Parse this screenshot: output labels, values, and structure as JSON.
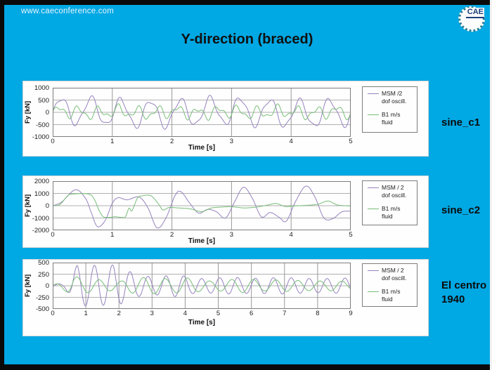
{
  "header": {
    "url": "www.caeconference.com",
    "title": "Y-direction (braced)",
    "logo_text": "CAE"
  },
  "row_labels": [
    "sine_c1",
    "sine_c2",
    "El centro\n1940"
  ],
  "colors": {
    "background": "#00A8E4",
    "panel": "#FEFEFE",
    "frame": "#7d7d7d",
    "grid_h": "#b0b0b0",
    "grid_v": "#999999",
    "series_msm": "#9782BE",
    "series_b1": "#78BE78",
    "title_text": "#101010",
    "url_text": "#EAF6FC"
  },
  "chart_data": [
    {
      "type": "line",
      "xlabel": "Time  [s]",
      "ylabel": "Fy [kN]",
      "xlim": [
        0,
        5
      ],
      "ylim": [
        -1000,
        1000
      ],
      "xticks": [
        0,
        1,
        2,
        3,
        4,
        5
      ],
      "yticks": [
        1000,
        500,
        0,
        -500,
        -1000
      ],
      "xgrid": [
        1,
        2,
        3,
        4
      ],
      "ygrid": [
        500,
        0,
        -500
      ],
      "legend_position": "right",
      "row_label": "sine_c1",
      "series": [
        {
          "name": "MSM /2 dof oscill.",
          "label_lines": [
            "MSM /2",
            "dof oscill."
          ],
          "color": "#9782BE",
          "gen": {
            "kind": "sines",
            "components": [
              [
                540,
                2.0,
                -0.22
              ],
              [
                110,
                4.6,
                0.9
              ],
              [
                60,
                0.4,
                0.55
              ]
            ]
          }
        },
        {
          "name": "B1 m/s fluid",
          "label_lines": [
            "B1 m/s",
            "fluid"
          ],
          "color": "#78BE78",
          "gen": {
            "kind": "sines",
            "components": [
              [
                200,
                3.0,
                -0.35
              ],
              [
                110,
                5.6,
                0.6
              ],
              [
                40,
                1.1,
                0.2
              ]
            ]
          }
        }
      ]
    },
    {
      "type": "line",
      "xlabel": "Time  [s]",
      "ylabel": "Fy [kN]",
      "xlim": [
        0,
        5
      ],
      "ylim": [
        -2000,
        2000
      ],
      "xticks": [
        0,
        1,
        2,
        3,
        4,
        5
      ],
      "yticks": [
        2000,
        1000,
        0,
        -1000,
        -2000
      ],
      "xgrid": [
        1,
        2,
        3,
        4
      ],
      "ygrid": [
        1000,
        0,
        -1000
      ],
      "legend_position": "right",
      "row_label": "sine_c2",
      "series": [
        {
          "name": "MSM / 2 dof oscill.",
          "label_lines": [
            "MSM / 2",
            "dof oscill."
          ],
          "color": "#9782BE",
          "gen": {
            "kind": "keypoints",
            "points": [
              [
                0,
                0
              ],
              [
                0.15,
                300
              ],
              [
                0.38,
                1300
              ],
              [
                0.55,
                600
              ],
              [
                0.65,
                -600
              ],
              [
                0.75,
                -1700
              ],
              [
                0.88,
                -1200
              ],
              [
                1.0,
                200
              ],
              [
                1.1,
                650
              ],
              [
                1.25,
                480
              ],
              [
                1.45,
                700
              ],
              [
                1.6,
                -200
              ],
              [
                1.75,
                -1800
              ],
              [
                1.9,
                -1000
              ],
              [
                2.05,
                800
              ],
              [
                2.15,
                1150
              ],
              [
                2.3,
                200
              ],
              [
                2.45,
                -600
              ],
              [
                2.6,
                -300
              ],
              [
                2.75,
                -500
              ],
              [
                2.9,
                -1000
              ],
              [
                3.05,
                300
              ],
              [
                3.2,
                1500
              ],
              [
                3.35,
                600
              ],
              [
                3.5,
                -900
              ],
              [
                3.65,
                -550
              ],
              [
                3.8,
                -950
              ],
              [
                3.92,
                -1250
              ],
              [
                4.08,
                400
              ],
              [
                4.25,
                1600
              ],
              [
                4.4,
                700
              ],
              [
                4.55,
                -1000
              ],
              [
                4.7,
                -1050
              ],
              [
                4.85,
                -500
              ],
              [
                5.0,
                -450
              ]
            ]
          }
        },
        {
          "name": "B1 m/s fluid",
          "label_lines": [
            "B1 m/s",
            "fluid"
          ],
          "color": "#78BE78",
          "gen": {
            "kind": "keypoints",
            "points": [
              [
                0,
                0
              ],
              [
                0.12,
                100
              ],
              [
                0.25,
                800
              ],
              [
                0.33,
                950
              ],
              [
                0.6,
                950
              ],
              [
                0.7,
                500
              ],
              [
                0.78,
                -400
              ],
              [
                0.85,
                -900
              ],
              [
                0.95,
                -950
              ],
              [
                1.05,
                -900
              ],
              [
                1.15,
                -950
              ],
              [
                1.22,
                -900
              ],
              [
                1.28,
                -200
              ],
              [
                1.33,
                -400
              ],
              [
                1.42,
                600
              ],
              [
                1.5,
                800
              ],
              [
                1.65,
                800
              ],
              [
                1.78,
                100
              ],
              [
                1.85,
                -350
              ],
              [
                1.95,
                -150
              ],
              [
                2.1,
                -180
              ],
              [
                2.3,
                -250
              ],
              [
                2.5,
                -480
              ],
              [
                2.65,
                -200
              ],
              [
                2.8,
                -120
              ],
              [
                3.0,
                -80
              ],
              [
                3.2,
                -180
              ],
              [
                3.4,
                -120
              ],
              [
                3.6,
                50
              ],
              [
                3.75,
                180
              ],
              [
                3.9,
                -60
              ],
              [
                4.05,
                -20
              ],
              [
                4.25,
                30
              ],
              [
                4.45,
                120
              ],
              [
                4.62,
                380
              ],
              [
                4.78,
                60
              ],
              [
                5.0,
                -20
              ]
            ]
          }
        }
      ]
    },
    {
      "type": "line",
      "xlabel": "Time  [s]",
      "ylabel": "Fy [kN]",
      "xlim": [
        0,
        9
      ],
      "ylim": [
        -500,
        500
      ],
      "xticks": [
        0,
        1,
        2,
        3,
        4,
        5,
        6,
        7,
        8,
        9
      ],
      "yticks": [
        500,
        250,
        0,
        -250,
        -500
      ],
      "xgrid": [
        1,
        2,
        3,
        4,
        5,
        6,
        7,
        8
      ],
      "ygrid": [
        250,
        0,
        -250
      ],
      "legend_position": "right",
      "row_label": "El centro 1940",
      "series": [
        {
          "name": "MSM / 2 dof oscill.",
          "label_lines": [
            "MSM / 2",
            "dof oscill."
          ],
          "color": "#9782BE",
          "gen": {
            "kind": "modulated",
            "freq": 1.85,
            "phase": -0.5,
            "envelope": [
              [
                0,
                30
              ],
              [
                0.35,
                50
              ],
              [
                0.55,
                220
              ],
              [
                0.75,
                460
              ],
              [
                1.1,
                420
              ],
              [
                1.35,
                450
              ],
              [
                1.6,
                410
              ],
              [
                1.85,
                460
              ],
              [
                2.1,
                380
              ],
              [
                2.35,
                300
              ],
              [
                2.6,
                230
              ],
              [
                3.0,
                190
              ],
              [
                3.5,
                220
              ],
              [
                3.8,
                240
              ],
              [
                4.2,
                170
              ],
              [
                4.6,
                150
              ],
              [
                5.0,
                170
              ],
              [
                5.5,
                180
              ],
              [
                6.0,
                160
              ],
              [
                6.5,
                170
              ],
              [
                7.0,
                180
              ],
              [
                7.5,
                160
              ],
              [
                8.0,
                150
              ],
              [
                8.5,
                160
              ],
              [
                9.0,
                170
              ]
            ]
          }
        },
        {
          "name": "B1 m/s fluid",
          "label_lines": [
            "B1 m/s",
            "fluid"
          ],
          "color": "#78BE78",
          "gen": {
            "kind": "modulated",
            "freq": 1.5,
            "phase": 0.9,
            "envelope": [
              [
                0,
                15
              ],
              [
                0.4,
                120
              ],
              [
                0.6,
                220
              ],
              [
                0.9,
                160
              ],
              [
                1.2,
                140
              ],
              [
                1.6,
                120
              ],
              [
                2.0,
                90
              ],
              [
                2.4,
                160
              ],
              [
                2.8,
                180
              ],
              [
                3.2,
                170
              ],
              [
                3.6,
                140
              ],
              [
                4.0,
                180
              ],
              [
                4.4,
                130
              ],
              [
                4.8,
                100
              ],
              [
                5.2,
                120
              ],
              [
                5.6,
                150
              ],
              [
                6.0,
                140
              ],
              [
                6.4,
                110
              ],
              [
                6.8,
                130
              ],
              [
                7.2,
                120
              ],
              [
                7.6,
                110
              ],
              [
                8.0,
                100
              ],
              [
                8.4,
                110
              ],
              [
                9.0,
                90
              ]
            ]
          }
        }
      ]
    }
  ]
}
